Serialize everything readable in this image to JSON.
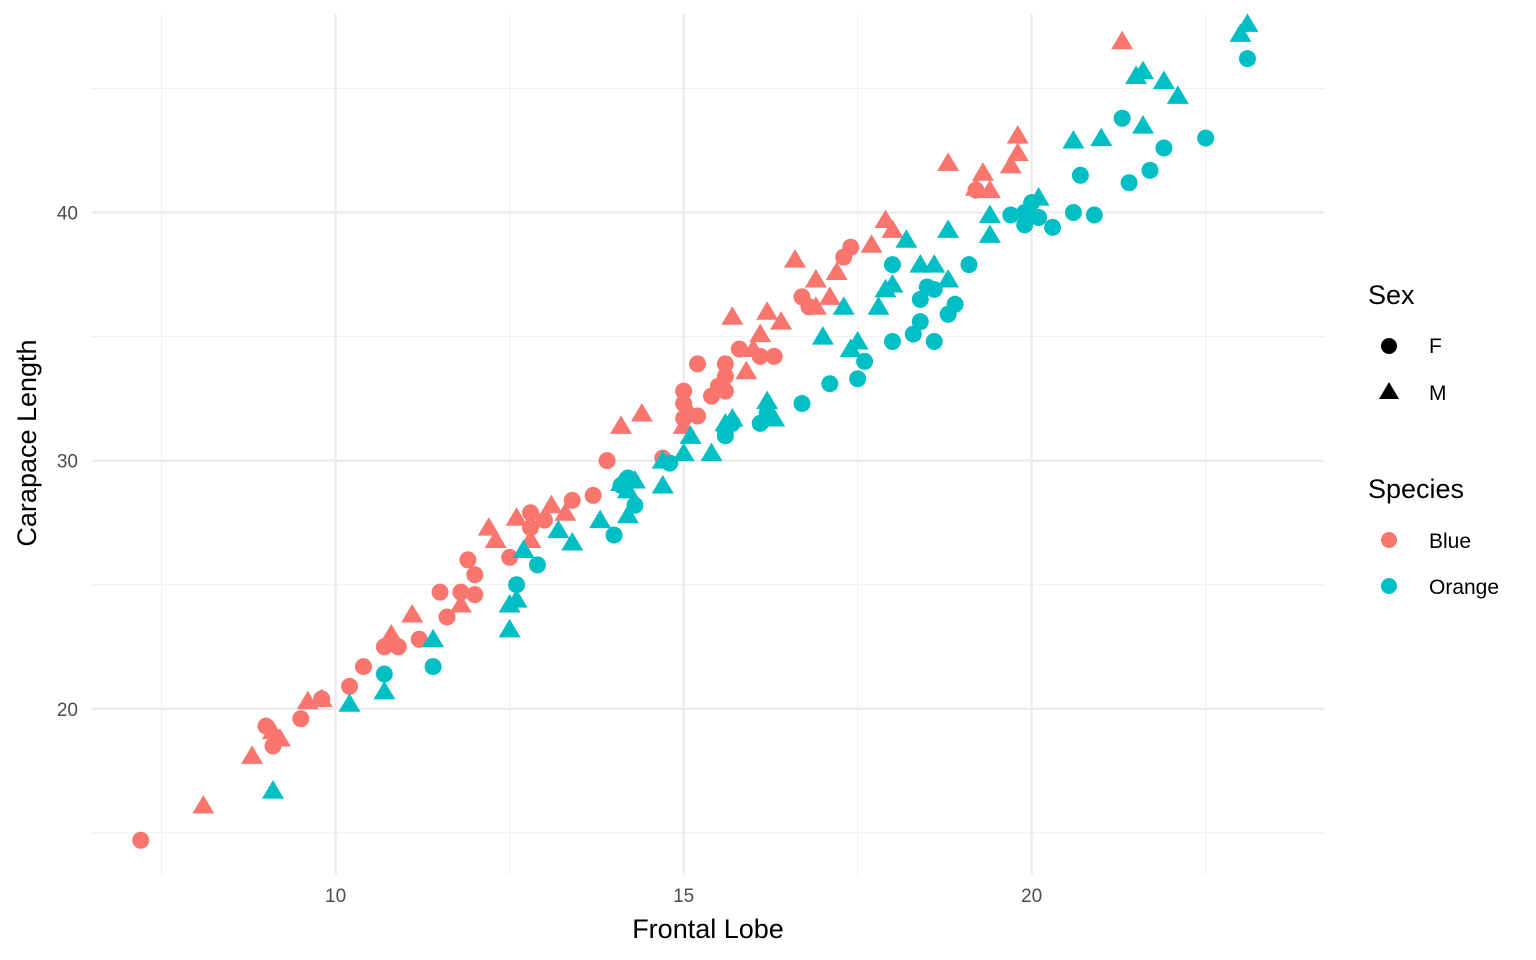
{
  "chart_data": {
    "type": "scatter",
    "title": "",
    "xlabel": "Frontal Lobe",
    "ylabel": "Carapace Length",
    "xlim": [
      6.5,
      24.2
    ],
    "ylim": [
      13.3,
      48.0
    ],
    "x_ticks": [
      10,
      15,
      20
    ],
    "y_ticks": [
      20,
      30,
      40
    ],
    "x_tick_labels": [
      "10",
      "15",
      "20"
    ],
    "y_tick_labels": [
      "20",
      "30",
      "40"
    ],
    "grid": true,
    "legend_position": "right",
    "legends": {
      "shape": {
        "title": "Sex",
        "entries": [
          {
            "label": "F",
            "shape": "circle"
          },
          {
            "label": "M",
            "shape": "triangle"
          }
        ]
      },
      "color": {
        "title": "Species",
        "entries": [
          {
            "label": "Blue",
            "color": "#F8766D"
          },
          {
            "label": "Orange",
            "color": "#00BFC4"
          }
        ]
      }
    },
    "series": [
      {
        "species": "Blue",
        "sex": "F",
        "color": "#F8766D",
        "shape": "circle",
        "points": [
          [
            7.2,
            14.7
          ],
          [
            9.0,
            19.3
          ],
          [
            9.1,
            18.5
          ],
          [
            9.5,
            19.6
          ],
          [
            9.8,
            20.4
          ],
          [
            10.2,
            20.9
          ],
          [
            10.4,
            21.7
          ],
          [
            10.7,
            22.5
          ],
          [
            10.9,
            22.5
          ],
          [
            11.2,
            22.8
          ],
          [
            11.5,
            24.7
          ],
          [
            11.6,
            23.7
          ],
          [
            11.8,
            24.7
          ],
          [
            11.9,
            26.0
          ],
          [
            12.0,
            25.4
          ],
          [
            12.0,
            24.6
          ],
          [
            12.5,
            26.1
          ],
          [
            12.8,
            27.9
          ],
          [
            12.8,
            27.3
          ],
          [
            13.0,
            27.6
          ],
          [
            13.4,
            28.4
          ],
          [
            13.7,
            28.6
          ],
          [
            13.9,
            30.0
          ],
          [
            14.7,
            30.1
          ],
          [
            15.0,
            31.7
          ],
          [
            15.0,
            32.3
          ],
          [
            15.0,
            32.8
          ],
          [
            15.2,
            31.8
          ],
          [
            15.2,
            33.9
          ],
          [
            15.4,
            32.6
          ],
          [
            15.5,
            33.0
          ],
          [
            15.6,
            33.4
          ],
          [
            15.6,
            33.9
          ],
          [
            15.6,
            32.8
          ],
          [
            15.8,
            34.5
          ],
          [
            16.1,
            34.2
          ],
          [
            16.3,
            34.2
          ],
          [
            16.7,
            36.6
          ],
          [
            16.8,
            36.2
          ],
          [
            17.3,
            38.2
          ],
          [
            17.4,
            38.6
          ],
          [
            19.2,
            40.9
          ]
        ]
      },
      {
        "species": "Blue",
        "sex": "M",
        "color": "#F8766D",
        "shape": "triangle",
        "points": [
          [
            8.1,
            16.1
          ],
          [
            8.8,
            18.1
          ],
          [
            9.1,
            19.1
          ],
          [
            9.2,
            18.8
          ],
          [
            9.6,
            20.3
          ],
          [
            9.8,
            20.4
          ],
          [
            10.8,
            23.0
          ],
          [
            11.1,
            23.8
          ],
          [
            11.8,
            24.2
          ],
          [
            12.2,
            27.3
          ],
          [
            12.3,
            26.8
          ],
          [
            12.6,
            27.7
          ],
          [
            12.8,
            26.8
          ],
          [
            13.1,
            28.2
          ],
          [
            13.3,
            27.9
          ],
          [
            14.1,
            31.4
          ],
          [
            14.4,
            31.9
          ],
          [
            15.0,
            31.4
          ],
          [
            15.1,
            31.9
          ],
          [
            15.7,
            35.8
          ],
          [
            15.9,
            33.6
          ],
          [
            16.0,
            34.5
          ],
          [
            16.1,
            35.1
          ],
          [
            16.2,
            36.0
          ],
          [
            16.4,
            35.6
          ],
          [
            16.6,
            38.1
          ],
          [
            16.9,
            37.3
          ],
          [
            16.9,
            36.2
          ],
          [
            17.1,
            36.6
          ],
          [
            17.2,
            37.6
          ],
          [
            17.7,
            38.7
          ],
          [
            17.9,
            39.7
          ],
          [
            18.0,
            39.3
          ],
          [
            18.8,
            42.0
          ],
          [
            19.2,
            41.0
          ],
          [
            19.3,
            41.6
          ],
          [
            19.4,
            40.9
          ],
          [
            19.7,
            41.9
          ],
          [
            19.8,
            43.1
          ],
          [
            19.8,
            42.4
          ],
          [
            21.3,
            46.9
          ]
        ]
      },
      {
        "species": "Orange",
        "sex": "F",
        "color": "#00BFC4",
        "shape": "circle",
        "points": [
          [
            10.7,
            21.4
          ],
          [
            11.4,
            21.7
          ],
          [
            12.6,
            25.0
          ],
          [
            12.9,
            25.8
          ],
          [
            14.0,
            27.0
          ],
          [
            14.1,
            29.0
          ],
          [
            14.2,
            29.3
          ],
          [
            14.3,
            28.2
          ],
          [
            14.8,
            29.9
          ],
          [
            15.6,
            31.0
          ],
          [
            15.6,
            31.2
          ],
          [
            15.7,
            31.5
          ],
          [
            16.1,
            31.5
          ],
          [
            16.2,
            31.9
          ],
          [
            16.7,
            32.3
          ],
          [
            17.1,
            33.1
          ],
          [
            17.5,
            33.3
          ],
          [
            17.6,
            34.0
          ],
          [
            18.0,
            37.9
          ],
          [
            18.0,
            34.8
          ],
          [
            18.3,
            35.1
          ],
          [
            18.4,
            35.6
          ],
          [
            18.4,
            36.5
          ],
          [
            18.5,
            37.0
          ],
          [
            18.6,
            36.9
          ],
          [
            18.6,
            34.8
          ],
          [
            18.8,
            35.9
          ],
          [
            18.9,
            36.3
          ],
          [
            19.1,
            37.9
          ],
          [
            19.7,
            39.9
          ],
          [
            19.9,
            39.5
          ],
          [
            19.9,
            40.0
          ],
          [
            20.0,
            40.4
          ],
          [
            20.1,
            39.8
          ],
          [
            20.3,
            39.4
          ],
          [
            20.6,
            40.0
          ],
          [
            20.7,
            41.5
          ],
          [
            20.9,
            39.9
          ],
          [
            21.3,
            43.8
          ],
          [
            21.4,
            41.2
          ],
          [
            21.7,
            41.7
          ],
          [
            21.9,
            42.6
          ],
          [
            22.5,
            43.0
          ],
          [
            23.1,
            46.2
          ]
        ]
      },
      {
        "species": "Orange",
        "sex": "M",
        "color": "#00BFC4",
        "shape": "triangle",
        "points": [
          [
            9.1,
            16.7
          ],
          [
            10.2,
            20.2
          ],
          [
            10.7,
            20.7
          ],
          [
            11.4,
            22.8
          ],
          [
            12.5,
            23.2
          ],
          [
            12.5,
            24.2
          ],
          [
            12.6,
            24.4
          ],
          [
            12.7,
            26.4
          ],
          [
            13.2,
            27.2
          ],
          [
            13.4,
            26.7
          ],
          [
            13.8,
            27.6
          ],
          [
            14.1,
            29.1
          ],
          [
            14.2,
            28.8
          ],
          [
            14.2,
            27.8
          ],
          [
            14.3,
            29.2
          ],
          [
            14.7,
            30.0
          ],
          [
            14.7,
            29.0
          ],
          [
            15.0,
            30.3
          ],
          [
            15.1,
            31.0
          ],
          [
            15.4,
            30.3
          ],
          [
            15.6,
            31.5
          ],
          [
            15.7,
            31.7
          ],
          [
            16.2,
            32.4
          ],
          [
            16.2,
            32.0
          ],
          [
            16.3,
            31.7
          ],
          [
            17.0,
            35.0
          ],
          [
            17.3,
            36.2
          ],
          [
            17.4,
            34.5
          ],
          [
            17.5,
            34.8
          ],
          [
            17.8,
            36.2
          ],
          [
            17.9,
            36.9
          ],
          [
            18.0,
            37.1
          ],
          [
            18.2,
            38.9
          ],
          [
            18.4,
            37.9
          ],
          [
            18.6,
            37.9
          ],
          [
            18.8,
            39.3
          ],
          [
            18.8,
            37.3
          ],
          [
            19.4,
            39.9
          ],
          [
            19.4,
            39.1
          ],
          [
            20.1,
            40.6
          ],
          [
            20.6,
            42.9
          ],
          [
            21.0,
            43.0
          ],
          [
            21.5,
            45.5
          ],
          [
            21.6,
            45.7
          ],
          [
            21.6,
            43.5
          ],
          [
            21.9,
            45.3
          ],
          [
            22.1,
            44.7
          ],
          [
            23.0,
            47.2
          ],
          [
            23.1,
            47.6
          ]
        ]
      }
    ]
  }
}
